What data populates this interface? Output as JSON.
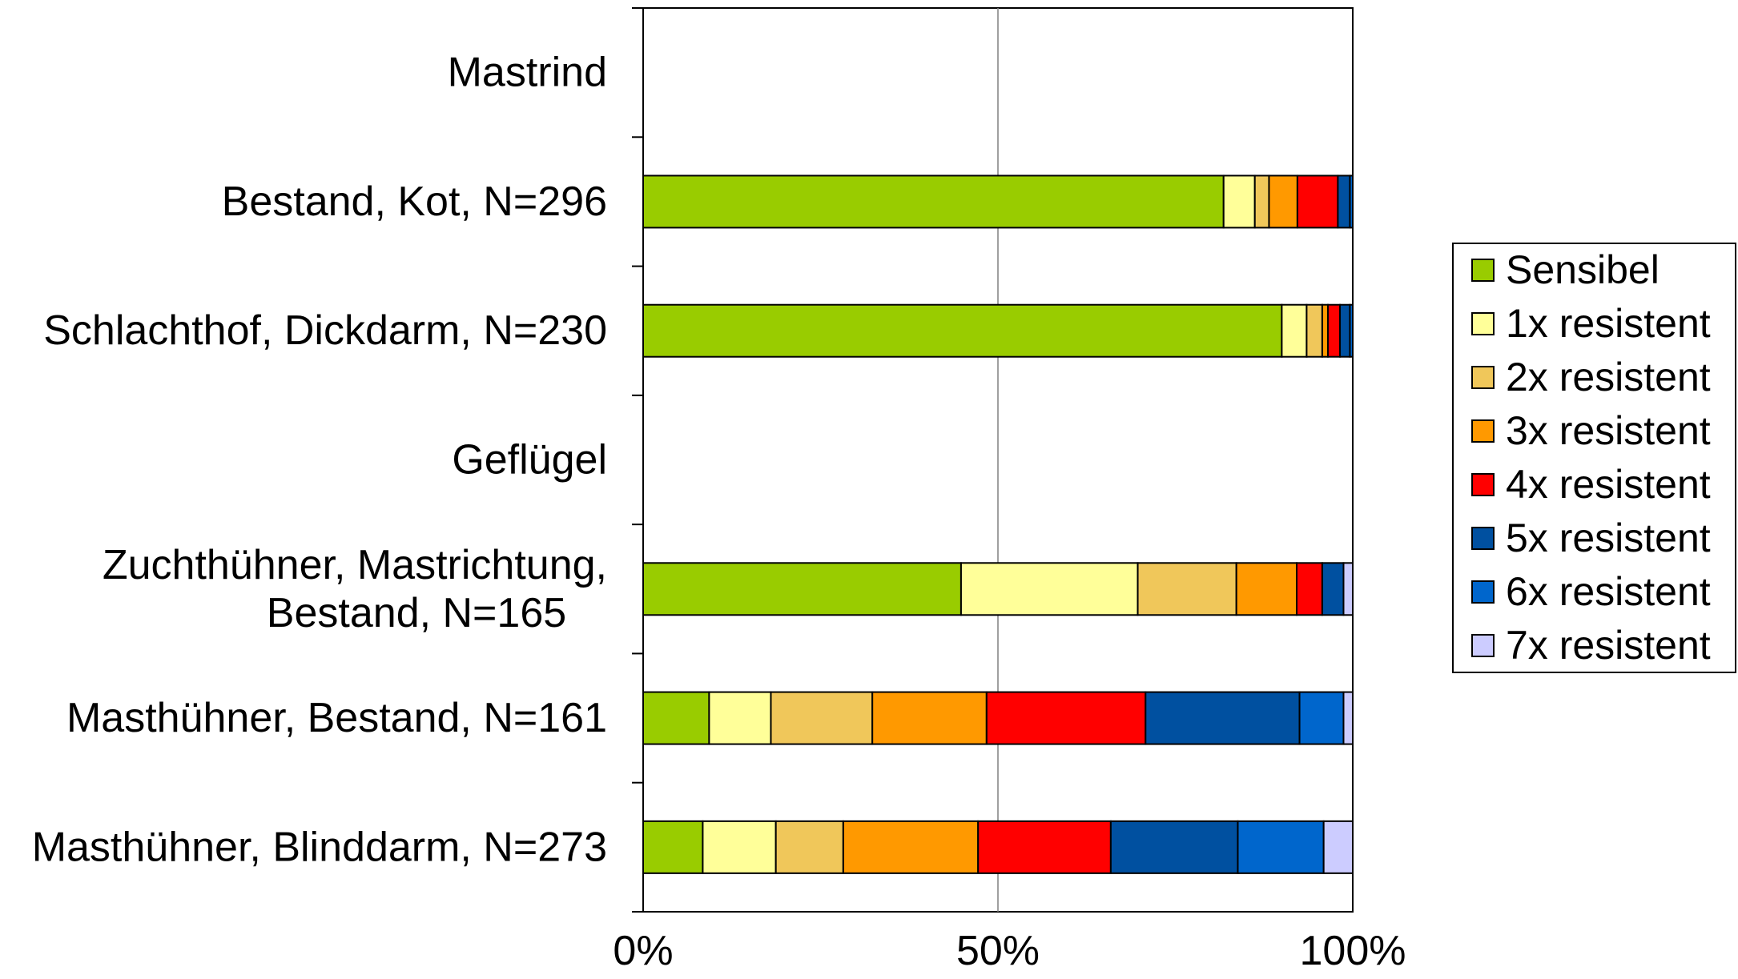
{
  "chart_data": {
    "type": "bar",
    "orientation": "horizontal",
    "stacked": "percent",
    "title": "",
    "xlabel": "",
    "ylabel": "",
    "xlim": [
      0,
      100
    ],
    "x_ticks": [
      "0%",
      "50%",
      "100%"
    ],
    "grid": "vertical gridlines",
    "legend_position": "right",
    "categories": [
      [
        "Mastrind"
      ],
      [
        "Bestand, Kot, N=296"
      ],
      [
        "Schlachthof, Dickdarm, N=230"
      ],
      [
        "Geflügel"
      ],
      [
        "Zuchthühner, Mastrichtung,",
        "Bestand, N=165"
      ],
      [
        "Masthühner, Bestand, N=161"
      ],
      [
        "Masthühner, Blinddarm, N=273"
      ]
    ],
    "series": [
      {
        "name": "Sensibel",
        "color": "#99CC00",
        "values": [
          null,
          81.8,
          90.0,
          null,
          44.8,
          9.3,
          8.4
        ]
      },
      {
        "name": "1x resistent",
        "color": "#FFFF99",
        "values": [
          null,
          4.4,
          3.5,
          null,
          24.9,
          8.7,
          10.3
        ]
      },
      {
        "name": "2x resistent",
        "color": "#F0C75A",
        "values": [
          null,
          2.0,
          2.2,
          null,
          13.9,
          14.3,
          9.5
        ]
      },
      {
        "name": "3x resistent",
        "color": "#FF9900",
        "values": [
          null,
          4.0,
          0.8,
          null,
          8.5,
          16.1,
          19.0
        ]
      },
      {
        "name": "4x resistent",
        "color": "#FF0000",
        "values": [
          null,
          5.7,
          1.7,
          null,
          3.6,
          22.4,
          18.7
        ]
      },
      {
        "name": "5x resistent",
        "color": "#0050A0",
        "values": [
          null,
          1.7,
          1.4,
          null,
          3.0,
          21.7,
          17.9
        ]
      },
      {
        "name": "6x resistent",
        "color": "#0066CC",
        "values": [
          null,
          0.4,
          0.4,
          null,
          0.0,
          6.2,
          12.1
        ]
      },
      {
        "name": "7x resistent",
        "color": "#CCCCFF",
        "values": [
          null,
          0.0,
          0.0,
          null,
          1.3,
          1.3,
          4.1
        ]
      }
    ]
  }
}
